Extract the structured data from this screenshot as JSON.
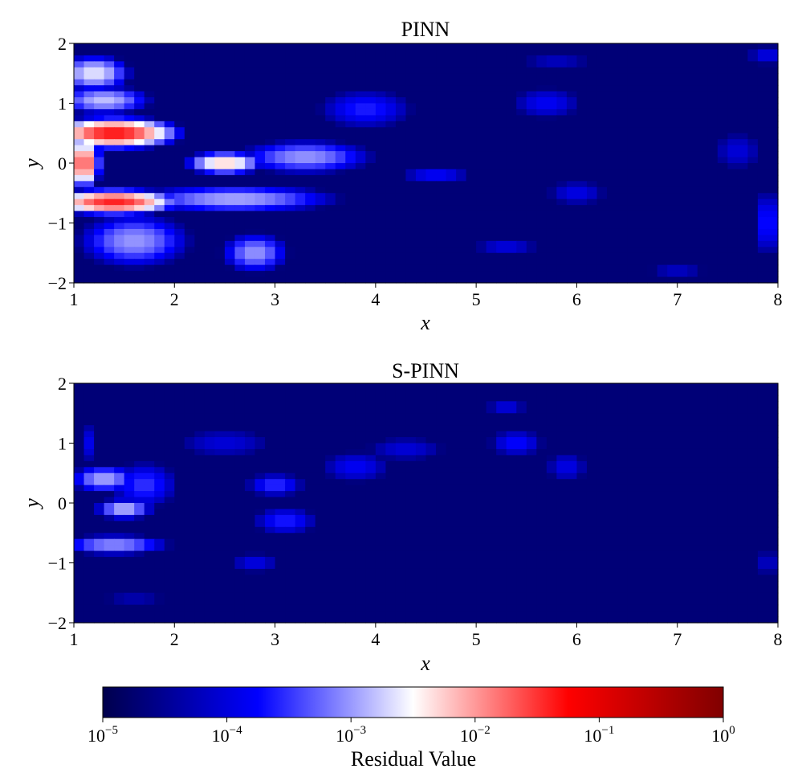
{
  "chart_data": [
    {
      "type": "heatmap",
      "title": "PINN",
      "xlabel": "x",
      "ylabel": "y",
      "xlim": [
        1,
        8
      ],
      "ylim": [
        -2,
        2
      ],
      "xticks": [
        "1",
        "2",
        "3",
        "4",
        "5",
        "6",
        "7",
        "8"
      ],
      "yticks": [
        "−2",
        "−1",
        "0",
        "1",
        "2"
      ],
      "grid": false,
      "blobs": [
        {
          "x": 1.4,
          "y": 0.5,
          "sx": 0.45,
          "sy": 0.18,
          "log10": -1.3
        },
        {
          "x": 1.4,
          "y": -0.65,
          "sx": 0.45,
          "sy": 0.15,
          "log10": -1.4
        },
        {
          "x": 1.1,
          "y": 0.0,
          "sx": 0.12,
          "sy": 0.3,
          "log10": -1.6
        },
        {
          "x": 1.2,
          "y": 1.5,
          "sx": 0.3,
          "sy": 0.25,
          "log10": -2.6
        },
        {
          "x": 1.3,
          "y": 1.05,
          "sx": 0.4,
          "sy": 0.2,
          "log10": -2.8
        },
        {
          "x": 1.6,
          "y": -1.3,
          "sx": 0.5,
          "sy": 0.4,
          "log10": -3.0
        },
        {
          "x": 2.5,
          "y": 0.0,
          "sx": 0.3,
          "sy": 0.15,
          "log10": -2.2
        },
        {
          "x": 2.6,
          "y": -0.6,
          "sx": 0.9,
          "sy": 0.2,
          "log10": -2.9
        },
        {
          "x": 2.8,
          "y": -1.5,
          "sx": 0.3,
          "sy": 0.3,
          "log10": -3.0
        },
        {
          "x": 3.3,
          "y": 0.1,
          "sx": 0.6,
          "sy": 0.25,
          "log10": -3.0
        },
        {
          "x": 3.9,
          "y": 0.9,
          "sx": 0.5,
          "sy": 0.35,
          "log10": -3.6
        },
        {
          "x": 4.6,
          "y": -0.2,
          "sx": 0.4,
          "sy": 0.15,
          "log10": -3.7
        },
        {
          "x": 5.3,
          "y": -1.4,
          "sx": 0.4,
          "sy": 0.15,
          "log10": -3.9
        },
        {
          "x": 5.7,
          "y": 1.0,
          "sx": 0.4,
          "sy": 0.3,
          "log10": -3.8
        },
        {
          "x": 6.0,
          "y": -0.5,
          "sx": 0.35,
          "sy": 0.25,
          "log10": -3.9
        },
        {
          "x": 7.0,
          "y": -1.8,
          "sx": 0.4,
          "sy": 0.12,
          "log10": -4.0
        },
        {
          "x": 7.6,
          "y": 0.2,
          "sx": 0.3,
          "sy": 0.4,
          "log10": -4.0
        },
        {
          "x": 7.9,
          "y": -1.0,
          "sx": 0.15,
          "sy": 0.6,
          "log10": -3.6
        },
        {
          "x": 7.9,
          "y": 1.8,
          "sx": 0.25,
          "sy": 0.2,
          "log10": -3.9
        },
        {
          "x": 5.8,
          "y": 1.7,
          "sx": 0.5,
          "sy": 0.15,
          "log10": -4.1
        }
      ]
    },
    {
      "type": "heatmap",
      "title": "S-PINN",
      "xlabel": "x",
      "ylabel": "y",
      "xlim": [
        1,
        8
      ],
      "ylim": [
        -2,
        2
      ],
      "xticks": [
        "1",
        "2",
        "3",
        "4",
        "5",
        "6",
        "7",
        "8"
      ],
      "yticks": [
        "−2",
        "−1",
        "0",
        "1",
        "2"
      ],
      "grid": false,
      "blobs": [
        {
          "x": 1.3,
          "y": 0.4,
          "sx": 0.3,
          "sy": 0.2,
          "log10": -2.9
        },
        {
          "x": 1.5,
          "y": -0.1,
          "sx": 0.25,
          "sy": 0.15,
          "log10": -2.8
        },
        {
          "x": 1.4,
          "y": -0.7,
          "sx": 0.5,
          "sy": 0.15,
          "log10": -3.0
        },
        {
          "x": 1.7,
          "y": 0.3,
          "sx": 0.35,
          "sy": 0.4,
          "log10": -3.5
        },
        {
          "x": 1.15,
          "y": 1.0,
          "sx": 0.12,
          "sy": 0.4,
          "log10": -3.9
        },
        {
          "x": 2.5,
          "y": 1.0,
          "sx": 0.6,
          "sy": 0.3,
          "log10": -4.0
        },
        {
          "x": 3.0,
          "y": 0.3,
          "sx": 0.3,
          "sy": 0.2,
          "log10": -3.5
        },
        {
          "x": 3.1,
          "y": -0.3,
          "sx": 0.35,
          "sy": 0.25,
          "log10": -3.6
        },
        {
          "x": 2.8,
          "y": -1.0,
          "sx": 0.3,
          "sy": 0.2,
          "log10": -3.9
        },
        {
          "x": 3.8,
          "y": 0.6,
          "sx": 0.4,
          "sy": 0.3,
          "log10": -3.8
        },
        {
          "x": 4.3,
          "y": 0.9,
          "sx": 0.5,
          "sy": 0.25,
          "log10": -4.0
        },
        {
          "x": 5.3,
          "y": 1.6,
          "sx": 0.25,
          "sy": 0.15,
          "log10": -3.9
        },
        {
          "x": 5.4,
          "y": 1.0,
          "sx": 0.3,
          "sy": 0.25,
          "log10": -3.7
        },
        {
          "x": 5.9,
          "y": 0.6,
          "sx": 0.25,
          "sy": 0.3,
          "log10": -3.9
        },
        {
          "x": 7.9,
          "y": -1.0,
          "sx": 0.12,
          "sy": 0.3,
          "log10": -4.0
        },
        {
          "x": 1.6,
          "y": -1.6,
          "sx": 0.5,
          "sy": 0.25,
          "log10": -4.3
        }
      ]
    }
  ],
  "colorbar": {
    "label": "Residual Value",
    "scale": "log",
    "range": [
      1e-05,
      1
    ],
    "ticks": [
      {
        "base": "10",
        "exp": "−5"
      },
      {
        "base": "10",
        "exp": "−4"
      },
      {
        "base": "10",
        "exp": "−3"
      },
      {
        "base": "10",
        "exp": "−2"
      },
      {
        "base": "10",
        "exp": "−1"
      },
      {
        "base": "10",
        "exp": "0"
      }
    ],
    "colormap": "seismic",
    "colors": [
      "#00004c",
      "#0000ff",
      "#ffffff",
      "#ff0000",
      "#800000"
    ]
  }
}
